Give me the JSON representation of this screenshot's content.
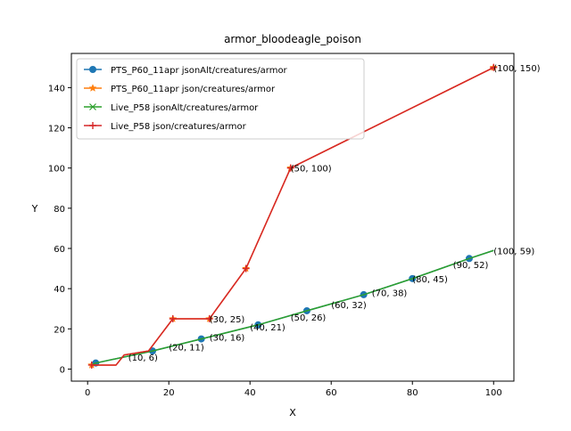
{
  "chart_data": {
    "type": "line",
    "title": "armor_bloodeagle_poison",
    "xlabel": "X",
    "ylabel": "Y",
    "xlim": [
      -4,
      105
    ],
    "ylim": [
      -6,
      157
    ],
    "xticks": [
      0,
      20,
      40,
      60,
      80,
      100
    ],
    "yticks": [
      0,
      20,
      40,
      60,
      80,
      100,
      120,
      140
    ],
    "grid": false,
    "legend_position": "upper-left",
    "series": [
      {
        "name": "PTS_P60_11apr jsonAlt/creatures/armor",
        "color": "#1f77b4",
        "marker": "circle",
        "x": [
          1,
          2,
          16,
          28,
          42,
          54,
          68,
          80,
          94,
          100
        ],
        "y": [
          2,
          3,
          9,
          15,
          22,
          29,
          37,
          45,
          55,
          59
        ],
        "marker_x": [
          2,
          16,
          28,
          42,
          54,
          68,
          80,
          94
        ]
      },
      {
        "name": "PTS_P60_11apr json/creatures/armor",
        "color": "#ff7f0e",
        "marker": "star",
        "x": [
          1,
          7,
          9,
          15,
          21,
          30,
          39,
          50,
          100
        ],
        "y": [
          2,
          2,
          7,
          9,
          25,
          25,
          50,
          100,
          150
        ],
        "marker_x": [
          1,
          21,
          30,
          39,
          50,
          100
        ]
      },
      {
        "name": "Live_P58 jsonAlt/creatures/armor",
        "color": "#2ca02c",
        "marker": "x",
        "x": [
          1,
          2,
          16,
          28,
          42,
          54,
          68,
          80,
          94,
          100
        ],
        "y": [
          2,
          3,
          9,
          15,
          22,
          29,
          37,
          45,
          55,
          59
        ]
      },
      {
        "name": "Live_P58 json/creatures/armor",
        "color": "#d62728",
        "marker": "plus",
        "x": [
          1,
          7,
          9,
          15,
          21,
          30,
          39,
          50,
          100
        ],
        "y": [
          2,
          2,
          7,
          9,
          25,
          25,
          50,
          100,
          150
        ],
        "marker_x": [
          1,
          21,
          30,
          39,
          50,
          100
        ]
      }
    ],
    "annotations": [
      {
        "text": "(10, 6)",
        "x": 10,
        "y": 6
      },
      {
        "text": "(20, 11)",
        "x": 20,
        "y": 11
      },
      {
        "text": "(30, 16)",
        "x": 30,
        "y": 16
      },
      {
        "text": "(30, 25)",
        "x": 30,
        "y": 25
      },
      {
        "text": "(40, 21)",
        "x": 40,
        "y": 21
      },
      {
        "text": "(50, 26)",
        "x": 50,
        "y": 26
      },
      {
        "text": "(50, 100)",
        "x": 50,
        "y": 100
      },
      {
        "text": "(60, 32)",
        "x": 60,
        "y": 32
      },
      {
        "text": "(70, 38)",
        "x": 70,
        "y": 38
      },
      {
        "text": "(80, 45)",
        "x": 80,
        "y": 45
      },
      {
        "text": "(90, 52)",
        "x": 90,
        "y": 52
      },
      {
        "text": "(100, 59)",
        "x": 100,
        "y": 59
      },
      {
        "text": "(100, 150)",
        "x": 100,
        "y": 150
      }
    ]
  }
}
